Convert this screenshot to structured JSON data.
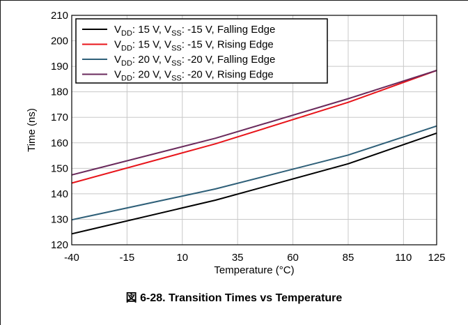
{
  "figure_caption": "図 6-28. Transition Times vs Temperature",
  "chart_data": {
    "type": "line",
    "title": "",
    "xlabel": "Temperature (°C)",
    "ylabel": "Time (ns)",
    "xlim": [
      -40,
      125
    ],
    "ylim": [
      120,
      210
    ],
    "x_ticks": [
      -40,
      -15,
      10,
      35,
      60,
      85,
      110,
      125
    ],
    "y_ticks": [
      120,
      130,
      140,
      150,
      160,
      170,
      180,
      190,
      200,
      210
    ],
    "grid": true,
    "legend_position": "top-left",
    "series": [
      {
        "name": "VDD: 15 V, VSS: -15 V, Falling Edge",
        "label_parts": [
          [
            "V",
            "n"
          ],
          [
            "DD",
            "s"
          ],
          [
            ": 15 V, V",
            "n"
          ],
          [
            "SS",
            "s"
          ],
          [
            ": -15 V, Falling Edge",
            "n"
          ]
        ],
        "color": "#000000",
        "x": [
          -40,
          25,
          85,
          125
        ],
        "y": [
          124.3,
          137.5,
          151.8,
          163.8
        ]
      },
      {
        "name": "VDD: 15 V, VSS: -15 V, Rising Edge",
        "label_parts": [
          [
            "V",
            "n"
          ],
          [
            "DD",
            "s"
          ],
          [
            ": 15 V, V",
            "n"
          ],
          [
            "SS",
            "s"
          ],
          [
            ": -15 V, Rising Edge",
            "n"
          ]
        ],
        "color": "#e8141a",
        "x": [
          -40,
          25,
          85,
          125
        ],
        "y": [
          144.2,
          159.6,
          175.9,
          188.4
        ]
      },
      {
        "name": "VDD: 20 V, VSS: -20 V, Falling Edge",
        "label_parts": [
          [
            "V",
            "n"
          ],
          [
            "DD",
            "s"
          ],
          [
            ": 20 V, V",
            "n"
          ],
          [
            "SS",
            "s"
          ],
          [
            ": -20 V, Falling Edge",
            "n"
          ]
        ],
        "color": "#2e5f78",
        "x": [
          -40,
          25,
          85,
          125
        ],
        "y": [
          129.8,
          141.9,
          155.2,
          166.6
        ]
      },
      {
        "name": "VDD: 20 V, VSS: -20 V, Rising Edge",
        "label_parts": [
          [
            "V",
            "n"
          ],
          [
            "DD",
            "s"
          ],
          [
            ": 20 V, V",
            "n"
          ],
          [
            "SS",
            "s"
          ],
          [
            ": -20 V, Rising Edge",
            "n"
          ]
        ],
        "color": "#6a2a5c",
        "x": [
          -40,
          25,
          85,
          125
        ],
        "y": [
          147.4,
          161.8,
          177.3,
          188.4
        ]
      }
    ]
  }
}
